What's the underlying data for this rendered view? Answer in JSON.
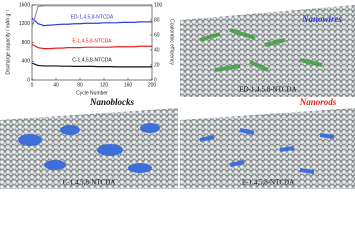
{
  "chart_data": {
    "type": "line",
    "y_label": "Discharge capacity / mAh g⁻¹",
    "y2_label": "Coulombic efficiency",
    "x_label": "Cycle Number",
    "x": [
      0,
      10,
      20,
      30,
      40,
      50,
      60,
      70,
      80,
      90,
      100,
      110,
      120,
      130,
      140,
      150,
      160,
      170,
      180,
      190,
      200
    ],
    "series": [
      {
        "name": "ED-1,4,5,8-NTCDA",
        "color": "#2b3fd6",
        "values": [
          1320,
          1200,
          1160,
          1170,
          1180,
          1190,
          1190,
          1200,
          1200,
          1210,
          1210,
          1210,
          1220,
          1220,
          1220,
          1230,
          1230,
          1230,
          1240,
          1240,
          1240
        ]
      },
      {
        "name": "E-1,4,5,8-NTCDA",
        "color": "#e52222",
        "values": [
          760,
          690,
          670,
          670,
          680,
          680,
          690,
          690,
          690,
          700,
          700,
          700,
          700,
          700,
          710,
          710,
          710,
          710,
          720,
          720,
          720
        ]
      },
      {
        "name": "C-1,4,5,8-NTCDA",
        "color": "#111111",
        "values": [
          360,
          310,
          300,
          300,
          300,
          295,
          295,
          290,
          290,
          290,
          290,
          285,
          285,
          285,
          280,
          280,
          280,
          280,
          280,
          280,
          280
        ]
      },
      {
        "color": "#9a9a9a",
        "axis": "y2",
        "values": [
          70,
          98,
          99,
          99,
          99,
          99,
          99,
          99,
          99,
          99,
          99,
          99,
          99,
          99,
          99,
          99,
          99,
          99,
          99,
          99,
          99
        ]
      }
    ],
    "xlim": [
      0,
      200
    ],
    "xticks": [
      0,
      40,
      80,
      120,
      160,
      200
    ],
    "ylim": [
      0,
      1600
    ],
    "yticks": [
      0,
      400,
      800,
      1200,
      1600
    ],
    "y2lim": [
      0,
      100
    ],
    "y2ticks": [
      0,
      20,
      40,
      60,
      80,
      100
    ]
  },
  "panels": {
    "top_right": {
      "title": "Nanowires",
      "label": "ED-1,4,5,8-NTCDA"
    },
    "bottom_left": {
      "title": "Nanoblocks",
      "label": "C-1,4,5,8-NTCDA"
    },
    "bottom_right": {
      "title": "Nanorods",
      "label": "E-1,4,5,8-NTCDA"
    }
  }
}
